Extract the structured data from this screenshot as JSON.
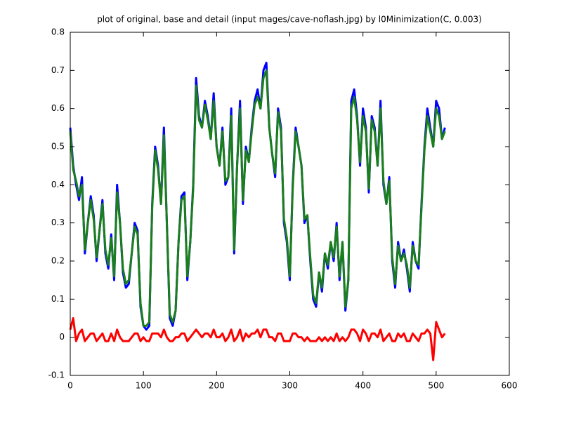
{
  "chart_data": {
    "type": "line",
    "title": "plot of original, base and detail (input mages/cave-noflash.jpg) by l0Minimization(C, 0.003)",
    "x": [
      0,
      4,
      8,
      12,
      16,
      20,
      24,
      28,
      32,
      36,
      40,
      44,
      48,
      52,
      56,
      60,
      64,
      68,
      72,
      76,
      80,
      84,
      88,
      92,
      96,
      100,
      104,
      108,
      112,
      116,
      120,
      124,
      128,
      132,
      136,
      140,
      144,
      148,
      152,
      156,
      160,
      164,
      168,
      172,
      176,
      180,
      184,
      188,
      192,
      196,
      200,
      204,
      208,
      212,
      216,
      220,
      224,
      228,
      232,
      236,
      240,
      244,
      248,
      252,
      256,
      260,
      264,
      268,
      272,
      276,
      280,
      284,
      288,
      292,
      296,
      300,
      304,
      308,
      312,
      316,
      320,
      324,
      328,
      332,
      336,
      340,
      344,
      348,
      352,
      356,
      360,
      364,
      368,
      372,
      376,
      380,
      384,
      388,
      392,
      396,
      400,
      404,
      408,
      412,
      416,
      420,
      424,
      428,
      432,
      436,
      440,
      444,
      448,
      452,
      456,
      460,
      464,
      468,
      472,
      476,
      480,
      484,
      488,
      492,
      496,
      500,
      504,
      508,
      512
    ],
    "series": [
      {
        "color": "#0000ff",
        "values": [
          0.55,
          0.45,
          0.4,
          0.36,
          0.42,
          0.22,
          0.3,
          0.37,
          0.32,
          0.2,
          0.28,
          0.36,
          0.22,
          0.18,
          0.27,
          0.15,
          0.4,
          0.3,
          0.17,
          0.13,
          0.14,
          0.22,
          0.3,
          0.28,
          0.08,
          0.03,
          0.02,
          0.03,
          0.35,
          0.5,
          0.45,
          0.35,
          0.55,
          0.3,
          0.05,
          0.03,
          0.07,
          0.25,
          0.37,
          0.38,
          0.15,
          0.25,
          0.4,
          0.68,
          0.58,
          0.55,
          0.62,
          0.58,
          0.52,
          0.64,
          0.5,
          0.45,
          0.55,
          0.4,
          0.42,
          0.6,
          0.22,
          0.45,
          0.62,
          0.35,
          0.5,
          0.46,
          0.55,
          0.62,
          0.65,
          0.6,
          0.7,
          0.72,
          0.55,
          0.48,
          0.42,
          0.6,
          0.55,
          0.3,
          0.25,
          0.15,
          0.4,
          0.55,
          0.5,
          0.45,
          0.3,
          0.32,
          0.2,
          0.1,
          0.08,
          0.17,
          0.12,
          0.22,
          0.18,
          0.25,
          0.2,
          0.3,
          0.15,
          0.25,
          0.07,
          0.15,
          0.62,
          0.65,
          0.58,
          0.45,
          0.6,
          0.55,
          0.38,
          0.58,
          0.55,
          0.45,
          0.62,
          0.4,
          0.35,
          0.42,
          0.2,
          0.13,
          0.25,
          0.2,
          0.23,
          0.18,
          0.12,
          0.25,
          0.2,
          0.18,
          0.35,
          0.5,
          0.6,
          0.55,
          0.5,
          0.62,
          0.6,
          0.52,
          0.55
        ]
      },
      {
        "color": "#1a7f1a",
        "values": [
          0.54,
          0.44,
          0.41,
          0.37,
          0.4,
          0.23,
          0.3,
          0.36,
          0.31,
          0.21,
          0.28,
          0.35,
          0.23,
          0.19,
          0.26,
          0.16,
          0.38,
          0.3,
          0.18,
          0.14,
          0.15,
          0.22,
          0.29,
          0.27,
          0.09,
          0.03,
          0.03,
          0.04,
          0.34,
          0.49,
          0.44,
          0.35,
          0.53,
          0.3,
          0.06,
          0.04,
          0.07,
          0.25,
          0.36,
          0.37,
          0.16,
          0.25,
          0.39,
          0.66,
          0.57,
          0.55,
          0.61,
          0.57,
          0.52,
          0.62,
          0.5,
          0.45,
          0.54,
          0.41,
          0.42,
          0.58,
          0.23,
          0.45,
          0.6,
          0.36,
          0.49,
          0.46,
          0.54,
          0.61,
          0.63,
          0.6,
          0.68,
          0.7,
          0.55,
          0.48,
          0.43,
          0.59,
          0.54,
          0.31,
          0.26,
          0.16,
          0.39,
          0.54,
          0.5,
          0.45,
          0.31,
          0.32,
          0.21,
          0.11,
          0.09,
          0.17,
          0.13,
          0.22,
          0.19,
          0.25,
          0.21,
          0.29,
          0.16,
          0.25,
          0.08,
          0.15,
          0.6,
          0.63,
          0.57,
          0.46,
          0.58,
          0.54,
          0.39,
          0.57,
          0.54,
          0.45,
          0.6,
          0.41,
          0.35,
          0.41,
          0.21,
          0.14,
          0.24,
          0.2,
          0.22,
          0.19,
          0.13,
          0.24,
          0.2,
          0.19,
          0.34,
          0.49,
          0.58,
          0.54,
          0.5,
          0.6,
          0.58,
          0.52,
          0.54
        ]
      },
      {
        "color": "#ff0000",
        "values": [
          0.02,
          0.05,
          -0.01,
          0.01,
          0.02,
          -0.01,
          0.0,
          0.01,
          0.01,
          -0.01,
          0.0,
          0.01,
          -0.01,
          -0.01,
          0.01,
          -0.01,
          0.02,
          0.0,
          -0.01,
          -0.01,
          -0.01,
          0.0,
          0.01,
          0.01,
          -0.01,
          0.0,
          -0.01,
          -0.01,
          0.01,
          0.01,
          0.01,
          0.0,
          0.02,
          0.0,
          -0.01,
          -0.01,
          0.0,
          0.0,
          0.01,
          0.01,
          -0.01,
          0.0,
          0.01,
          0.02,
          0.01,
          0.0,
          0.01,
          0.01,
          0.0,
          0.02,
          0.0,
          0.0,
          0.01,
          -0.01,
          0.0,
          0.02,
          -0.01,
          0.0,
          0.02,
          -0.01,
          0.01,
          0.0,
          0.01,
          0.01,
          0.02,
          0.0,
          0.02,
          0.02,
          0.0,
          0.0,
          -0.01,
          0.01,
          0.01,
          -0.01,
          -0.01,
          -0.01,
          0.01,
          0.01,
          0.0,
          0.0,
          -0.01,
          0.0,
          -0.01,
          -0.01,
          -0.01,
          0.0,
          -0.01,
          0.0,
          -0.01,
          0.0,
          -0.01,
          0.01,
          -0.01,
          0.0,
          -0.01,
          0.0,
          0.02,
          0.02,
          0.01,
          -0.01,
          0.02,
          0.01,
          -0.01,
          0.01,
          0.01,
          0.0,
          0.02,
          -0.01,
          0.0,
          0.01,
          -0.01,
          -0.01,
          0.01,
          0.0,
          0.01,
          -0.01,
          -0.01,
          0.01,
          0.0,
          -0.01,
          0.01,
          0.01,
          0.02,
          0.01,
          -0.06,
          0.04,
          0.02,
          0.0,
          0.01
        ]
      }
    ],
    "xlim": [
      0,
      600
    ],
    "xticks": [
      0,
      100,
      200,
      300,
      400,
      500,
      600
    ],
    "ylim": [
      -0.1,
      0.8
    ],
    "yticks": [
      -0.1,
      0,
      0.1,
      0.2,
      0.3,
      0.4,
      0.5,
      0.6,
      0.7,
      0.8
    ],
    "grid": false
  }
}
